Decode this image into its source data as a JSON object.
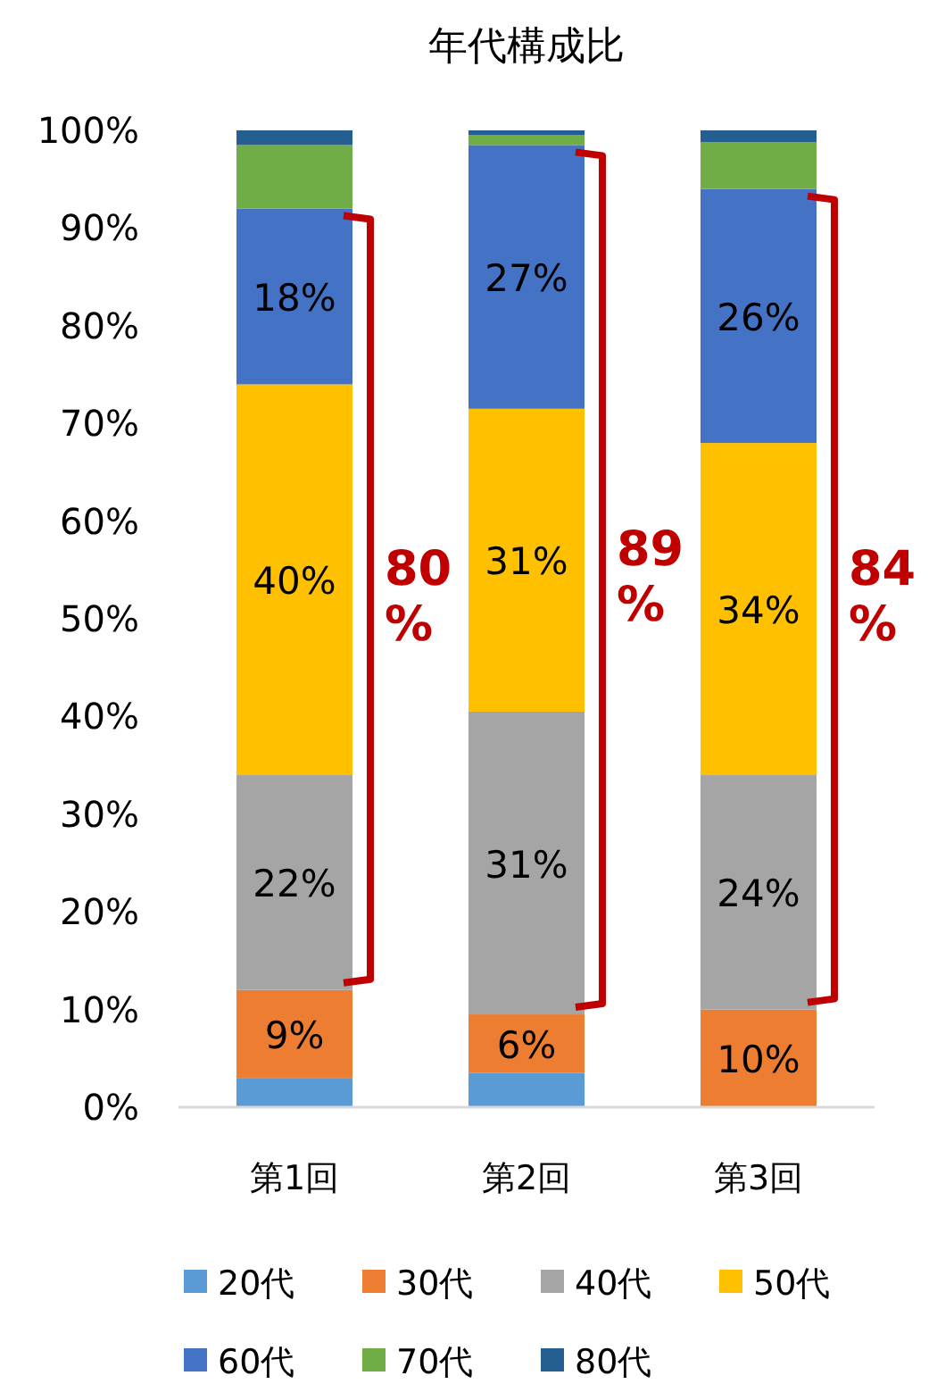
{
  "chart_data": {
    "type": "bar",
    "stacked": true,
    "title": "年代構成比",
    "categories": [
      "第1回",
      "第2回",
      "第3回"
    ],
    "ylim": [
      0,
      100
    ],
    "yticks": [
      {
        "value": 0,
        "label": "0%"
      },
      {
        "value": 10,
        "label": "10%"
      },
      {
        "value": 20,
        "label": "20%"
      },
      {
        "value": 30,
        "label": "30%"
      },
      {
        "value": 40,
        "label": "40%"
      },
      {
        "value": 50,
        "label": "50%"
      },
      {
        "value": 60,
        "label": "60%"
      },
      {
        "value": 70,
        "label": "70%"
      },
      {
        "value": 80,
        "label": "80%"
      },
      {
        "value": 90,
        "label": "90%"
      },
      {
        "value": 100,
        "label": "100%"
      }
    ],
    "grid": false,
    "legend": "bottom",
    "series": [
      {
        "name": "20代",
        "color": "#5b9bd5",
        "values": [
          3,
          3.5,
          0
        ]
      },
      {
        "name": "30代",
        "color": "#ed7d31",
        "values": [
          9,
          6,
          10
        ],
        "value_labels": [
          "9%",
          "6%",
          "10%"
        ]
      },
      {
        "name": "40代",
        "color": "#a5a5a5",
        "values": [
          22,
          31,
          24
        ],
        "value_labels": [
          "22%",
          "31%",
          "24%"
        ]
      },
      {
        "name": "50代",
        "color": "#ffc000",
        "values": [
          40,
          31,
          34
        ],
        "value_labels": [
          "40%",
          "31%",
          "34%"
        ]
      },
      {
        "name": "60代",
        "color": "#4472c4",
        "values": [
          18,
          27,
          26
        ],
        "value_labels": [
          "18%",
          "27%",
          "26%"
        ]
      },
      {
        "name": "70代",
        "color": "#70ad47",
        "values": [
          6.5,
          1,
          4.8
        ]
      },
      {
        "name": "80代",
        "color": "#255e91",
        "values": [
          1.5,
          0.5,
          1.2
        ]
      }
    ],
    "annotations": [
      "80%",
      "89%",
      "84%"
    ]
  }
}
